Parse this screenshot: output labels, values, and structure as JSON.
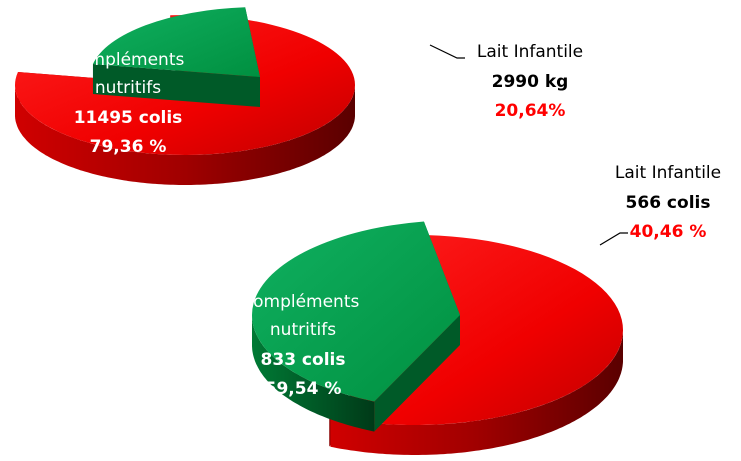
{
  "chart_data": [
    {
      "type": "pie",
      "categories": [
        "Compléments nutritifs",
        "Lait Infantile"
      ],
      "values": [
        79.36,
        20.64
      ],
      "value_labels": [
        "79,36 %",
        "20,64%"
      ],
      "quantity_labels": [
        "11495 colis",
        "2990 kg"
      ],
      "colors": [
        "#ff0000",
        "#00a650"
      ]
    },
    {
      "type": "pie",
      "categories": [
        "Compléments nutritifs",
        "Lait Infantile"
      ],
      "values": [
        59.54,
        40.46
      ],
      "value_labels": [
        "59,54 %",
        "40,46 %"
      ],
      "quantity_labels": [
        "833 colis",
        "566 colis"
      ],
      "colors": [
        "#ff0000",
        "#00a650"
      ]
    }
  ]
}
